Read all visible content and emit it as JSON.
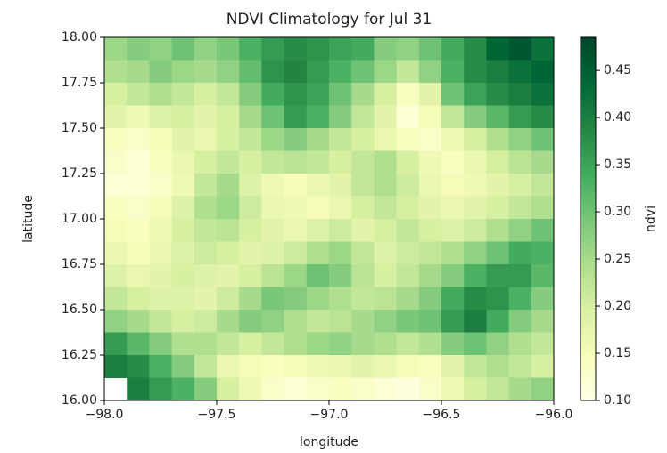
{
  "chart_data": {
    "type": "heatmap",
    "title": "NDVI Climatology for Jul 31",
    "x_label": "longitude",
    "y_label": "latitude",
    "colorbar_label": "ndvi",
    "colormap": "YlGn",
    "xlim": [
      -98,
      -96
    ],
    "ylim": [
      16,
      18
    ],
    "clim": [
      0.1,
      0.485
    ],
    "xticks": [
      {
        "value": -98,
        "label": "−98.0"
      },
      {
        "value": -97.5,
        "label": "−97.5"
      },
      {
        "value": -97,
        "label": "−97.0"
      },
      {
        "value": -96.5,
        "label": "−96.5"
      },
      {
        "value": -96,
        "label": "−96.0"
      }
    ],
    "yticks": [
      {
        "value": 16,
        "label": "16.00"
      },
      16.25,
      {
        "value": 16.5,
        "label": "16.50"
      },
      16.75,
      {
        "value": 17,
        "label": "17.00"
      },
      17.25,
      {
        "value": 17.5,
        "label": "17.50"
      },
      17.75,
      {
        "value": 18,
        "label": "18.00"
      }
    ],
    "cticks": [
      {
        "value": 0.1,
        "label": "0.10"
      },
      0.15,
      {
        "value": 0.2,
        "label": "0.20"
      },
      0.25,
      {
        "value": 0.3,
        "label": "0.30"
      },
      0.35,
      {
        "value": 0.4,
        "label": "0.40"
      },
      0.45
    ],
    "x": [
      -97.95,
      -97.85,
      -97.75,
      -97.65,
      -97.55,
      -97.45,
      -97.35,
      -97.25,
      -97.15,
      -97.05,
      -96.95,
      -96.85,
      -96.75,
      -96.65,
      -96.55,
      -96.45,
      -96.35,
      -96.25,
      -96.15,
      -96.05
    ],
    "y": [
      17.9375,
      17.8125,
      17.6875,
      17.5625,
      17.4375,
      17.3125,
      17.1875,
      17.0625,
      16.9375,
      16.8125,
      16.6875,
      16.5625,
      16.4375,
      16.3125,
      16.1875,
      16.0625
    ],
    "z": [
      [
        0.26,
        0.28,
        0.27,
        0.3,
        0.27,
        0.29,
        0.33,
        0.36,
        0.38,
        0.37,
        0.35,
        0.34,
        0.28,
        0.27,
        0.3,
        0.34,
        0.38,
        0.44,
        0.46,
        0.42
      ],
      [
        0.24,
        0.25,
        0.28,
        0.26,
        0.25,
        0.27,
        0.31,
        0.37,
        0.39,
        0.36,
        0.33,
        0.3,
        0.26,
        0.22,
        0.27,
        0.33,
        0.38,
        0.4,
        0.42,
        0.44
      ],
      [
        0.2,
        0.22,
        0.24,
        0.22,
        0.2,
        0.22,
        0.28,
        0.34,
        0.37,
        0.35,
        0.3,
        0.25,
        0.2,
        0.14,
        0.18,
        0.3,
        0.35,
        0.38,
        0.4,
        0.42
      ],
      [
        0.18,
        0.16,
        0.19,
        0.2,
        0.18,
        0.2,
        0.25,
        0.3,
        0.36,
        0.33,
        0.28,
        0.22,
        0.18,
        0.12,
        0.15,
        0.22,
        0.28,
        0.32,
        0.36,
        0.38
      ],
      [
        0.14,
        0.13,
        0.15,
        0.18,
        0.17,
        0.2,
        0.22,
        0.26,
        0.28,
        0.25,
        0.22,
        0.2,
        0.17,
        0.14,
        0.13,
        0.16,
        0.2,
        0.24,
        0.27,
        0.3
      ],
      [
        0.13,
        0.12,
        0.14,
        0.17,
        0.2,
        0.22,
        0.2,
        0.22,
        0.23,
        0.22,
        0.2,
        0.22,
        0.24,
        0.2,
        0.16,
        0.14,
        0.17,
        0.2,
        0.23,
        0.25
      ],
      [
        0.12,
        0.12,
        0.13,
        0.16,
        0.22,
        0.25,
        0.19,
        0.16,
        0.15,
        0.17,
        0.18,
        0.22,
        0.24,
        0.21,
        0.17,
        0.15,
        0.16,
        0.18,
        0.2,
        0.22
      ],
      [
        0.14,
        0.13,
        0.15,
        0.19,
        0.24,
        0.26,
        0.21,
        0.17,
        0.16,
        0.15,
        0.17,
        0.2,
        0.22,
        0.2,
        0.18,
        0.17,
        0.18,
        0.2,
        0.22,
        0.24
      ],
      [
        0.15,
        0.14,
        0.16,
        0.2,
        0.22,
        0.23,
        0.2,
        0.18,
        0.17,
        0.19,
        0.21,
        0.18,
        0.2,
        0.22,
        0.2,
        0.19,
        0.21,
        0.24,
        0.27,
        0.3
      ],
      [
        0.17,
        0.15,
        0.17,
        0.19,
        0.21,
        0.2,
        0.18,
        0.19,
        0.21,
        0.24,
        0.26,
        0.22,
        0.19,
        0.21,
        0.22,
        0.24,
        0.27,
        0.3,
        0.34,
        0.33
      ],
      [
        0.19,
        0.17,
        0.18,
        0.2,
        0.19,
        0.18,
        0.2,
        0.23,
        0.26,
        0.3,
        0.28,
        0.23,
        0.2,
        0.22,
        0.25,
        0.28,
        0.33,
        0.36,
        0.36,
        0.32
      ],
      [
        0.22,
        0.2,
        0.19,
        0.19,
        0.18,
        0.21,
        0.25,
        0.29,
        0.28,
        0.26,
        0.24,
        0.22,
        0.23,
        0.25,
        0.28,
        0.34,
        0.38,
        0.37,
        0.33,
        0.28
      ],
      [
        0.27,
        0.25,
        0.22,
        0.2,
        0.21,
        0.25,
        0.28,
        0.27,
        0.24,
        0.22,
        0.23,
        0.25,
        0.27,
        0.29,
        0.3,
        0.36,
        0.4,
        0.34,
        0.28,
        0.25
      ],
      [
        0.36,
        0.32,
        0.28,
        0.24,
        0.24,
        0.22,
        0.2,
        0.22,
        0.24,
        0.26,
        0.27,
        0.25,
        0.24,
        0.22,
        0.24,
        0.28,
        0.3,
        0.27,
        0.24,
        0.22
      ],
      [
        0.4,
        0.38,
        0.33,
        0.28,
        0.22,
        0.17,
        0.15,
        0.14,
        0.15,
        0.16,
        0.17,
        0.18,
        0.17,
        0.15,
        0.14,
        0.18,
        0.22,
        0.24,
        0.22,
        0.2
      ],
      [
        null,
        0.4,
        0.36,
        0.33,
        0.28,
        0.2,
        0.16,
        0.13,
        0.12,
        0.13,
        0.14,
        0.13,
        0.12,
        0.11,
        0.13,
        0.16,
        0.2,
        0.22,
        0.25,
        0.27
      ]
    ]
  }
}
